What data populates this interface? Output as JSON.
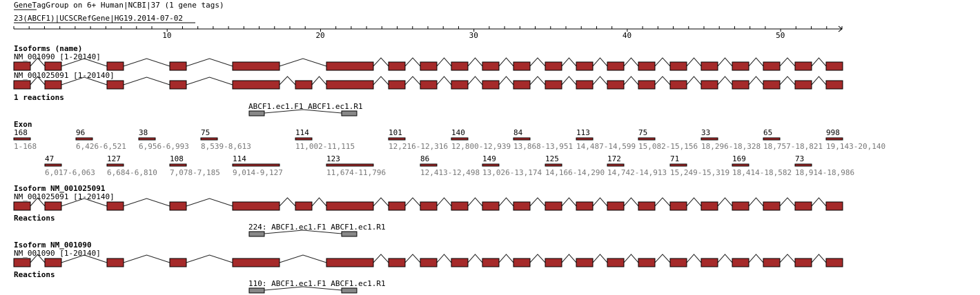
{
  "header": {
    "title": "GeneTagGroup on 6+ Human|NCBI|37 (1 gene tags)",
    "gene_line": "23(ABCF1)|UCSCRefGene|HG19.2014-07-02"
  },
  "colors": {
    "exon": "#a52a2a",
    "primer": "#888888",
    "line": "#000000"
  },
  "axis": {
    "max": 54,
    "ticks": [
      10,
      20,
      30,
      40,
      50
    ],
    "tick_labels": [
      "10",
      "20",
      "30",
      "40",
      "50"
    ]
  },
  "isoforms_section": {
    "title": "Isoforms (name)",
    "tracks": [
      {
        "label": "NM_001090 [1-20140]",
        "variant": "NM_001090"
      },
      {
        "label": "NM_001025091 [1-20140]",
        "variant": "NM_001025091"
      }
    ]
  },
  "reactions_all": {
    "title": "1 reactions",
    "label": "ABCF1.ec1.F1 ABCF1.ec1.R1"
  },
  "exon_section": {
    "title": "Exon",
    "exons": [
      {
        "size": "168",
        "range": "1-168"
      },
      {
        "size": "47",
        "range": "6,017-6,063"
      },
      {
        "size": "96",
        "range": "6,426-6,521"
      },
      {
        "size": "127",
        "range": "6,684-6,810"
      },
      {
        "size": "38",
        "range": "6,956-6,993"
      },
      {
        "size": "108",
        "range": "7,078-7,185"
      },
      {
        "size": "75",
        "range": "8,539-8,613"
      },
      {
        "size": "114",
        "range": "9,014-9,127"
      },
      {
        "size": "114",
        "range": "11,002-11,115"
      },
      {
        "size": "123",
        "range": "11,674-11,796"
      },
      {
        "size": "101",
        "range": "12,216-12,316"
      },
      {
        "size": "86",
        "range": "12,413-12,498"
      },
      {
        "size": "140",
        "range": "12,800-12,939"
      },
      {
        "size": "149",
        "range": "13,026-13,174"
      },
      {
        "size": "84",
        "range": "13,868-13,951"
      },
      {
        "size": "125",
        "range": "14,166-14,290"
      },
      {
        "size": "113",
        "range": "14,487-14,599"
      },
      {
        "size": "172",
        "range": "14,742-14,913"
      },
      {
        "size": "75",
        "range": "15,082-15,156"
      },
      {
        "size": "71",
        "range": "15,249-15,319"
      },
      {
        "size": "33",
        "range": "18,296-18,328"
      },
      {
        "size": "169",
        "range": "18,414-18,582"
      },
      {
        "size": "65",
        "range": "18,757-18,821"
      },
      {
        "size": "73",
        "range": "18,914-18,986"
      },
      {
        "size": "998",
        "range": "19,143-20,140"
      }
    ]
  },
  "isoform1": {
    "title": "Isoform NM_001025091",
    "label": "NM_001025091 [1-20140]",
    "variant": "NM_001025091",
    "reactions_title": "Reactions",
    "reaction_label": "224: ABCF1.ec1.F1 ABCF1.ec1.R1"
  },
  "isoform2": {
    "title": "Isoform NM_001090",
    "label": "NM_001090 [1-20140]",
    "variant": "NM_001090",
    "reactions_title": "Reactions",
    "reaction_label": "110: ABCF1.ec1.F1 ABCF1.ec1.R1"
  }
}
